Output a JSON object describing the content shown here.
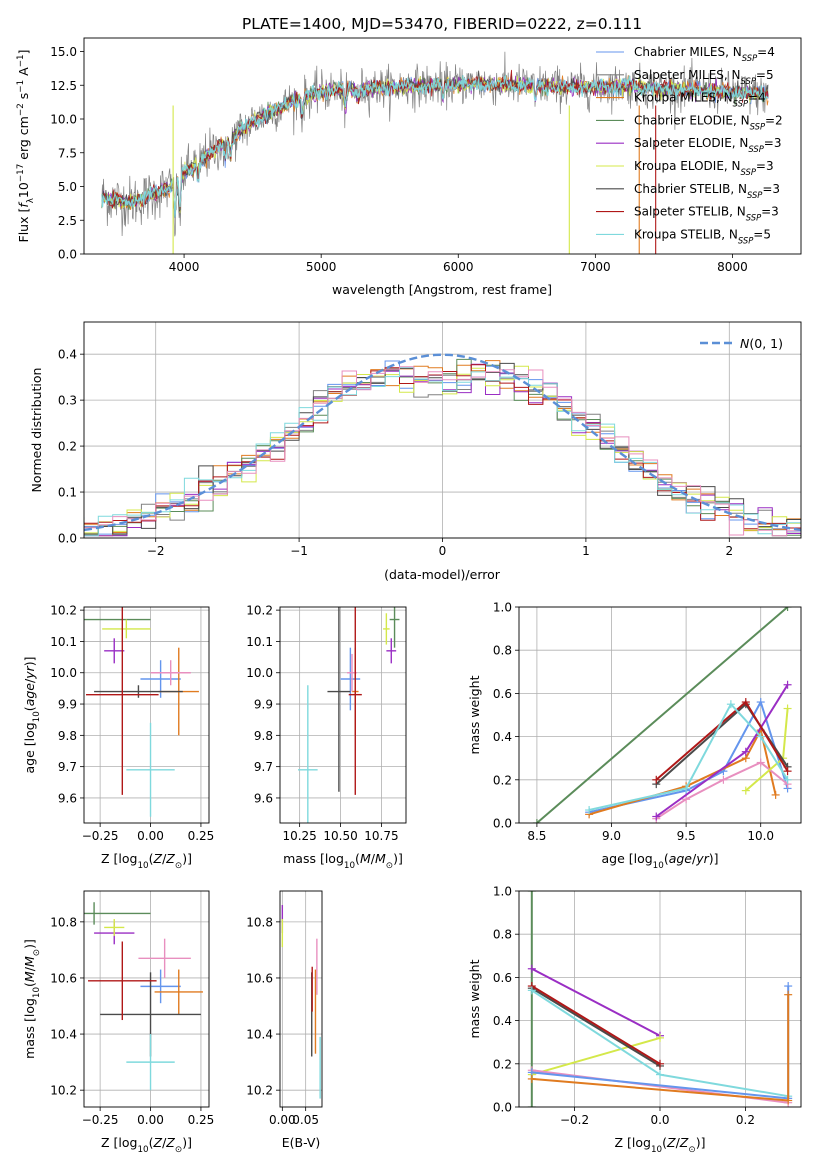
{
  "figure": {
    "title": "PLATE=1400, MJD=53470, FIBERID=0222, z=0.111"
  },
  "chart_data": [
    {
      "type": "line",
      "panel": "spectrum",
      "xlabel": "wavelength [Angstrom, rest frame]",
      "ylabel": "Flux [f_λ10^-17 erg cm^-2 s^-1 A^-1]",
      "xlim": [
        3270,
        8500
      ],
      "ylim": [
        0,
        16
      ],
      "xticks": [
        4000,
        5000,
        6000,
        7000,
        8000
      ],
      "yticks": [
        0.0,
        2.5,
        5.0,
        7.5,
        10.0,
        12.5,
        15.0
      ],
      "ytick_labels": [
        "0.0",
        "2.5",
        "5.0",
        "7.5",
        "10.0",
        "12.5",
        "15.0"
      ],
      "grid": false,
      "legend_position": "top-right",
      "spectrum_envelope": {
        "x": [
          3400,
          3500,
          3600,
          3700,
          3800,
          3900,
          4000,
          4100,
          4200,
          4300,
          4400,
          4500,
          4600,
          4700,
          4800,
          4900,
          5000,
          5200,
          5400,
          5600,
          5800,
          6000,
          6200,
          6400,
          6600,
          6800,
          7000,
          7200,
          7400,
          7600,
          7800,
          8000,
          8260
        ],
        "y": [
          4.2,
          4.0,
          3.8,
          4.1,
          4.5,
          5.0,
          6.0,
          6.8,
          7.5,
          8.3,
          9.0,
          9.8,
          10.4,
          10.8,
          11.4,
          11.7,
          12.0,
          12.2,
          12.3,
          12.4,
          12.5,
          12.6,
          12.6,
          12.5,
          12.5,
          12.3,
          12.4,
          12.5,
          12.3,
          12.2,
          12.1,
          12.0,
          11.8
        ]
      },
      "series": [
        {
          "name": "Chabrier MILES, N_SSP=4",
          "color": "#6495ed"
        },
        {
          "name": "Salpeter MILES, N_SSP=5",
          "color": "#808080"
        },
        {
          "name": "Kroupa MILES, N_SSP=4",
          "color": "#e07b20"
        },
        {
          "name": "Chabrier ELODIE, N_SSP=2",
          "color": "#5b8c5a"
        },
        {
          "name": "Salpeter ELODIE, N_SSP=3",
          "color": "#9a2ec4"
        },
        {
          "name": "Kroupa ELODIE, N_SSP=3",
          "color": "#d4e84a"
        },
        {
          "name": "Chabrier STELIB, N_SSP=3",
          "color": "#4a4a4a"
        },
        {
          "name": "Salpeter STELIB, N_SSP=3",
          "color": "#b01818"
        },
        {
          "name": "Kroupa STELIB, N_SSP=5",
          "color": "#7fd9dd"
        }
      ],
      "legend": [
        {
          "prefix": "Chabrier MILES, N",
          "sub": "SSP",
          "suffix": "=4"
        },
        {
          "prefix": "Salpeter MILES, N",
          "sub": "SSP",
          "suffix": "=5"
        },
        {
          "prefix": "Kroupa MILES, N",
          "sub": "SSP",
          "suffix": "=4"
        },
        {
          "prefix": "Chabrier ELODIE, N",
          "sub": "SSP",
          "suffix": "=2"
        },
        {
          "prefix": "Salpeter ELODIE, N",
          "sub": "SSP",
          "suffix": "=3"
        },
        {
          "prefix": "Kroupa ELODIE, N",
          "sub": "SSP",
          "suffix": "=3"
        },
        {
          "prefix": "Chabrier STELIB, N",
          "sub": "SSP",
          "suffix": "=3"
        },
        {
          "prefix": "Salpeter STELIB, N",
          "sub": "SSP",
          "suffix": "=3"
        },
        {
          "prefix": "Kroupa STELIB, N",
          "sub": "SSP",
          "suffix": "=5"
        }
      ]
    },
    {
      "type": "line",
      "panel": "residuals",
      "xlabel": "(data-model)/error",
      "ylabel": "Normed distribution",
      "xlim": [
        -2.5,
        2.5
      ],
      "ylim": [
        0,
        0.47
      ],
      "xticks": [
        -2,
        -1,
        0,
        1,
        2
      ],
      "xtick_labels": [
        "−2",
        "−1",
        "0",
        "1",
        "2"
      ],
      "yticks": [
        0.0,
        0.1,
        0.2,
        0.3,
        0.4
      ],
      "ytick_labels": [
        "0.0",
        "0.1",
        "0.2",
        "0.3",
        "0.4"
      ],
      "grid": true,
      "legend_position": "top-right",
      "reference_curve": {
        "name": "N(0,1)",
        "color": "#5b8fd6",
        "style": "dashed"
      },
      "bin_width": 0.1
    },
    {
      "type": "scatter",
      "panel": "age-vs-Z",
      "xlabel": "Z [log10(Z/Z⊙)]",
      "ylabel": "age [log10(age/yr)]",
      "xlim": [
        -0.33,
        0.29
      ],
      "ylim": [
        9.52,
        10.21
      ],
      "xticks": [
        -0.25,
        0.0,
        0.25
      ],
      "xtick_labels": [
        "−0.25",
        "0.00",
        "0.25"
      ],
      "yticks": [
        9.6,
        9.7,
        9.8,
        9.9,
        10.0,
        10.1,
        10.2
      ],
      "ytick_labels": [
        "9.6",
        "9.7",
        "9.8",
        "9.9",
        "10.0",
        "10.1",
        "10.2"
      ],
      "grid": true,
      "points": [
        {
          "color": "#6495ed",
          "x": 0.05,
          "xerr": 0.1,
          "y": 9.98,
          "yerr": 0.06
        },
        {
          "color": "#e07b20",
          "x": 0.14,
          "xerr": 0.1,
          "y": 9.94,
          "yerr": 0.14
        },
        {
          "color": "#5b8c5a",
          "x": -0.28,
          "xerr": 0.28,
          "y": 10.17,
          "yerr": 0.0
        },
        {
          "color": "#9a2ec4",
          "x": -0.18,
          "xerr": 0.05,
          "y": 10.07,
          "yerr": 0.04
        },
        {
          "color": "#d4e84a",
          "x": -0.12,
          "xerr": 0.12,
          "y": 10.14,
          "yerr": 0.03
        },
        {
          "color": "#e88fbf",
          "x": 0.1,
          "xerr": 0.1,
          "y": 10.0,
          "yerr": 0.04
        },
        {
          "color": "#4a4a4a",
          "x": -0.06,
          "xerr": 0.22,
          "y": 9.94,
          "yerr": 0.02
        },
        {
          "color": "#b01818",
          "x": -0.14,
          "xerr": 0.18,
          "y": 9.93,
          "yerr": 0.32
        },
        {
          "color": "#7fd9dd",
          "x": 0.0,
          "xerr": 0.12,
          "y": 9.69,
          "yerr": 0.15
        }
      ]
    },
    {
      "type": "scatter",
      "panel": "age-vs-mass",
      "xlabel": "mass [log10(M/M⊙)]",
      "ylabel": "",
      "xlim": [
        10.13,
        10.9
      ],
      "ylim": [
        9.52,
        10.21
      ],
      "xticks": [
        10.25,
        10.5,
        10.75
      ],
      "xtick_labels": [
        "10.25",
        "10.50",
        "10.75"
      ],
      "yticks": [
        9.6,
        9.7,
        9.8,
        9.9,
        10.0,
        10.1,
        10.2
      ],
      "ytick_labels": [
        "9.6",
        "9.7",
        "9.8",
        "9.9",
        "10.0",
        "10.1",
        "10.2"
      ],
      "grid": true,
      "points": [
        {
          "color": "#6495ed",
          "x": 10.56,
          "xerr": 0.06,
          "y": 9.98,
          "yerr": 0.1
        },
        {
          "color": "#e07b20",
          "x": 10.59,
          "xerr": 0.02,
          "y": 9.94,
          "yerr": 0.14
        },
        {
          "color": "#5b8c5a",
          "x": 10.83,
          "xerr": 0.03,
          "y": 10.17,
          "yerr": 0.09
        },
        {
          "color": "#9a2ec4",
          "x": 10.81,
          "xerr": 0.03,
          "y": 10.07,
          "yerr": 0.04
        },
        {
          "color": "#d4e84a",
          "x": 10.78,
          "xerr": 0.02,
          "y": 10.14,
          "yerr": 0.05
        },
        {
          "color": "#e88fbf",
          "x": 10.57,
          "xerr": 0.03,
          "y": 10.0,
          "yerr": 0.06
        },
        {
          "color": "#4a4a4a",
          "x": 10.49,
          "xerr": 0.07,
          "y": 9.94,
          "yerr": 0.32
        },
        {
          "color": "#b01818",
          "x": 10.59,
          "xerr": 0.04,
          "y": 9.93,
          "yerr": 0.32
        },
        {
          "color": "#7fd9dd",
          "x": 10.3,
          "xerr": 0.06,
          "y": 9.69,
          "yerr": 0.27
        }
      ]
    },
    {
      "type": "line",
      "panel": "mass-weight-vs-age",
      "xlabel": "age [log10(age/yr)]",
      "ylabel": "mass weight",
      "xlim": [
        8.38,
        10.27
      ],
      "ylim": [
        0,
        1
      ],
      "xticks": [
        8.5,
        9.0,
        9.5,
        10.0
      ],
      "xtick_labels": [
        "8.5",
        "9.0",
        "9.5",
        "10.0"
      ],
      "yticks": [
        0.0,
        0.2,
        0.4,
        0.6,
        0.8,
        1.0
      ],
      "ytick_labels": [
        "0.0",
        "0.2",
        "0.4",
        "0.6",
        "0.8",
        "1.0"
      ],
      "grid": true,
      "series": [
        {
          "color": "#5b8c5a",
          "x": [
            8.5,
            10.18
          ],
          "y": [
            0.0,
            1.0
          ]
        },
        {
          "color": "#6495ed",
          "x": [
            8.85,
            9.5,
            9.75,
            10.0,
            10.18
          ],
          "y": [
            0.05,
            0.15,
            0.24,
            0.56,
            0.16
          ]
        },
        {
          "color": "#e07b20",
          "x": [
            8.85,
            9.5,
            9.9,
            10.0,
            10.1
          ],
          "y": [
            0.04,
            0.17,
            0.3,
            0.43,
            0.13
          ]
        },
        {
          "color": "#e88fbf",
          "x": [
            9.3,
            9.5,
            9.75,
            10.0,
            10.18
          ],
          "y": [
            0.02,
            0.11,
            0.2,
            0.28,
            0.18
          ]
        },
        {
          "color": "#9a2ec4",
          "x": [
            9.3,
            9.9,
            10.18
          ],
          "y": [
            0.03,
            0.33,
            0.64
          ]
        },
        {
          "color": "#d4e84a",
          "x": [
            9.9,
            10.15,
            10.18
          ],
          "y": [
            0.15,
            0.3,
            0.53
          ]
        },
        {
          "color": "#4a4a4a",
          "x": [
            9.3,
            9.9,
            10.18
          ],
          "y": [
            0.18,
            0.55,
            0.26
          ]
        },
        {
          "color": "#b01818",
          "x": [
            9.3,
            9.9,
            10.18
          ],
          "y": [
            0.2,
            0.56,
            0.24
          ]
        },
        {
          "color": "#7fd9dd",
          "x": [
            8.85,
            9.5,
            9.8,
            10.0,
            10.18
          ],
          "y": [
            0.06,
            0.16,
            0.55,
            0.4,
            0.2
          ]
        }
      ]
    },
    {
      "type": "scatter",
      "panel": "mass-vs-Z",
      "xlabel": "Z [log10(Z/Z⊙)]",
      "ylabel": "mass [log10(M/M⊙)]",
      "xlim": [
        -0.33,
        0.29
      ],
      "ylim": [
        10.14,
        10.91
      ],
      "xticks": [
        -0.25,
        0.0,
        0.25
      ],
      "xtick_labels": [
        "−0.25",
        "0.00",
        "0.25"
      ],
      "yticks": [
        10.2,
        10.4,
        10.6,
        10.8
      ],
      "ytick_labels": [
        "10.2",
        "10.4",
        "10.6",
        "10.8"
      ],
      "grid": true,
      "points": [
        {
          "color": "#6495ed",
          "x": 0.05,
          "xerr": 0.1,
          "y": 10.57,
          "yerr": 0.06
        },
        {
          "color": "#e07b20",
          "x": 0.14,
          "xerr": 0.12,
          "y": 10.55,
          "yerr": 0.08
        },
        {
          "color": "#5b8c5a",
          "x": -0.28,
          "xerr": 0.28,
          "y": 10.83,
          "yerr": 0.04
        },
        {
          "color": "#9a2ec4",
          "x": -0.18,
          "xerr": 0.1,
          "y": 10.76,
          "yerr": 0.04
        },
        {
          "color": "#d4e84a",
          "x": -0.18,
          "xerr": 0.05,
          "y": 10.78,
          "yerr": 0.03
        },
        {
          "color": "#e88fbf",
          "x": 0.07,
          "xerr": 0.13,
          "y": 10.67,
          "yerr": 0.07
        },
        {
          "color": "#4a4a4a",
          "x": 0.0,
          "xerr": 0.25,
          "y": 10.47,
          "yerr": 0.15
        },
        {
          "color": "#b01818",
          "x": -0.14,
          "xerr": 0.17,
          "y": 10.59,
          "yerr": 0.14
        },
        {
          "color": "#7fd9dd",
          "x": 0.0,
          "xerr": 0.12,
          "y": 10.3,
          "yerr": 0.1
        }
      ]
    },
    {
      "type": "scatter",
      "panel": "mass-vs-EBV",
      "xlabel": "E(B-V)",
      "ylabel": "",
      "xlim": [
        -0.005,
        0.085
      ],
      "ylim": [
        10.14,
        10.91
      ],
      "xticks": [
        0.0,
        0.05
      ],
      "xtick_labels": [
        "0.00",
        "0.05"
      ],
      "yticks": [
        10.2,
        10.4,
        10.6,
        10.8
      ],
      "ytick_labels": [
        "10.2",
        "10.4",
        "10.6",
        "10.8"
      ],
      "grid": true,
      "points": [
        {
          "color": "#9a2ec4",
          "x": 0.0,
          "xerr": 0.0,
          "y": 10.81,
          "yerr": 0.05
        },
        {
          "color": "#d4e84a",
          "x": 0.0,
          "xerr": 0.0,
          "y": 10.76,
          "yerr": 0.05
        },
        {
          "color": "#4a4a4a",
          "x": 0.063,
          "xerr": 0.0,
          "y": 10.47,
          "yerr": 0.15
        },
        {
          "color": "#b01818",
          "x": 0.064,
          "xerr": 0.0,
          "y": 10.56,
          "yerr": 0.08
        },
        {
          "color": "#e07b20",
          "x": 0.071,
          "xerr": 0.0,
          "y": 10.48,
          "yerr": 0.15
        },
        {
          "color": "#e88fbf",
          "x": 0.074,
          "xerr": 0.0,
          "y": 10.64,
          "yerr": 0.1
        },
        {
          "color": "#7fd9dd",
          "x": 0.081,
          "xerr": 0.0,
          "y": 10.28,
          "yerr": 0.11
        }
      ]
    },
    {
      "type": "line",
      "panel": "mass-weight-vs-Z",
      "xlabel": "Z [log10(Z/Z⊙)]",
      "ylabel": "mass weight",
      "xlim": [
        -0.33,
        0.33
      ],
      "ylim": [
        0,
        1
      ],
      "xticks": [
        -0.2,
        0.0,
        0.2
      ],
      "xtick_labels": [
        "−0.2",
        "0.0",
        "0.2"
      ],
      "yticks": [
        0.0,
        0.2,
        0.4,
        0.6,
        0.8,
        1.0
      ],
      "ytick_labels": [
        "0.0",
        "0.2",
        "0.4",
        "0.6",
        "0.8",
        "1.0"
      ],
      "grid": true,
      "series": [
        {
          "color": "#5b8c5a",
          "x": [
            -0.3,
            -0.3
          ],
          "y": [
            0.0,
            1.0
          ]
        },
        {
          "color": "#9a2ec4",
          "x": [
            -0.3,
            0.0
          ],
          "y": [
            0.64,
            0.33
          ]
        },
        {
          "color": "#d4e84a",
          "x": [
            -0.3,
            0.0
          ],
          "y": [
            0.15,
            0.32
          ]
        },
        {
          "color": "#4a4a4a",
          "x": [
            -0.3,
            0.0
          ],
          "y": [
            0.55,
            0.19
          ]
        },
        {
          "color": "#b01818",
          "x": [
            -0.3,
            0.0
          ],
          "y": [
            0.56,
            0.2
          ]
        },
        {
          "color": "#7fd9dd",
          "x": [
            -0.3,
            0.0,
            0.3
          ],
          "y": [
            0.54,
            0.15,
            0.05
          ]
        },
        {
          "color": "#e88fbf",
          "x": [
            -0.3,
            0.3
          ],
          "y": [
            0.17,
            0.02
          ]
        },
        {
          "color": "#6495ed",
          "x": [
            -0.3,
            0.3,
            0.3
          ],
          "y": [
            0.16,
            0.04,
            0.56
          ]
        },
        {
          "color": "#e07b20",
          "x": [
            -0.3,
            0.3,
            0.3
          ],
          "y": [
            0.13,
            0.03,
            0.52
          ]
        }
      ]
    }
  ]
}
